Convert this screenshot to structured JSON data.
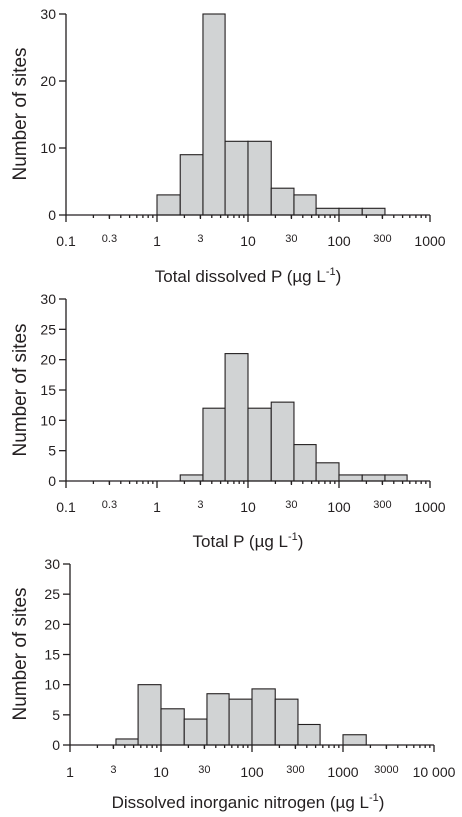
{
  "chart_data": [
    {
      "type": "bar",
      "subtype": "histogram",
      "x_scale": "log",
      "xlim": [
        0.1,
        1000
      ],
      "ylim": [
        0,
        30
      ],
      "yticks": [
        "0",
        "10",
        "20",
        "30"
      ],
      "xticks": [
        {
          "value": 0.1,
          "label": "0.1",
          "major": true
        },
        {
          "value": 0.3,
          "label": "0.3",
          "major": false
        },
        {
          "value": 1,
          "label": "1",
          "major": true
        },
        {
          "value": 3,
          "label": "3",
          "major": false
        },
        {
          "value": 10,
          "label": "10",
          "major": true
        },
        {
          "value": 30,
          "label": "30",
          "major": false
        },
        {
          "value": 100,
          "label": "100",
          "major": true
        },
        {
          "value": 300,
          "label": "300",
          "major": false
        },
        {
          "value": 1000,
          "label": "1000",
          "major": true
        }
      ],
      "ylabel": "Number of sites",
      "xlabel": "Total dissolved P  (µg L",
      "xlabel_sup": "-1",
      "xlabel_end": ")",
      "bar_color": "#d1d3d4",
      "bins": [
        {
          "from": 1.0,
          "to": 1.8,
          "count": 3
        },
        {
          "from": 1.8,
          "to": 3.2,
          "count": 9
        },
        {
          "from": 3.2,
          "to": 5.6,
          "count": 30
        },
        {
          "from": 5.6,
          "to": 10,
          "count": 11
        },
        {
          "from": 10,
          "to": 18,
          "count": 11
        },
        {
          "from": 18,
          "to": 32,
          "count": 4
        },
        {
          "from": 32,
          "to": 56,
          "count": 3
        },
        {
          "from": 56,
          "to": 100,
          "count": 1
        },
        {
          "from": 100,
          "to": 180,
          "count": 1
        },
        {
          "from": 180,
          "to": 320,
          "count": 1
        }
      ]
    },
    {
      "type": "bar",
      "subtype": "histogram",
      "x_scale": "log",
      "xlim": [
        0.1,
        1000
      ],
      "ylim": [
        0,
        30
      ],
      "yticks": [
        "0",
        "5",
        "10",
        "15",
        "20",
        "25",
        "30"
      ],
      "xticks": [
        {
          "value": 0.1,
          "label": "0.1",
          "major": true
        },
        {
          "value": 0.3,
          "label": "0.3",
          "major": false
        },
        {
          "value": 1,
          "label": "1",
          "major": true
        },
        {
          "value": 3,
          "label": "3",
          "major": false
        },
        {
          "value": 10,
          "label": "10",
          "major": true
        },
        {
          "value": 30,
          "label": "30",
          "major": false
        },
        {
          "value": 100,
          "label": "100",
          "major": true
        },
        {
          "value": 300,
          "label": "300",
          "major": false
        },
        {
          "value": 1000,
          "label": "1000",
          "major": true
        }
      ],
      "ylabel": "Number of sites",
      "xlabel": "Total P  (µg L",
      "xlabel_sup": "-1",
      "xlabel_end": ")",
      "bar_color": "#d1d3d4",
      "bins": [
        {
          "from": 1.8,
          "to": 3.2,
          "count": 1
        },
        {
          "from": 3.2,
          "to": 5.6,
          "count": 12
        },
        {
          "from": 5.6,
          "to": 10,
          "count": 21
        },
        {
          "from": 10,
          "to": 18,
          "count": 12
        },
        {
          "from": 18,
          "to": 32,
          "count": 13
        },
        {
          "from": 32,
          "to": 56,
          "count": 6
        },
        {
          "from": 56,
          "to": 100,
          "count": 3
        },
        {
          "from": 100,
          "to": 180,
          "count": 1
        },
        {
          "from": 180,
          "to": 320,
          "count": 1
        },
        {
          "from": 320,
          "to": 560,
          "count": 1
        }
      ]
    },
    {
      "type": "bar",
      "subtype": "histogram",
      "x_scale": "log",
      "xlim": [
        1,
        10000
      ],
      "ylim": [
        0,
        30
      ],
      "yticks": [
        "0",
        "5",
        "10",
        "15",
        "20",
        "25",
        "30"
      ],
      "xticks": [
        {
          "value": 1,
          "label": "1",
          "major": true
        },
        {
          "value": 3,
          "label": "3",
          "major": false
        },
        {
          "value": 10,
          "label": "10",
          "major": true
        },
        {
          "value": 30,
          "label": "30",
          "major": false
        },
        {
          "value": 100,
          "label": "100",
          "major": true
        },
        {
          "value": 300,
          "label": "300",
          "major": false
        },
        {
          "value": 1000,
          "label": "1000",
          "major": true
        },
        {
          "value": 3000,
          "label": "3000",
          "major": false
        },
        {
          "value": 10000,
          "label": "10 000",
          "major": true
        }
      ],
      "ylabel": "Number of sites",
      "xlabel": "Dissolved inorganic nitrogen (µg L",
      "xlabel_sup": "-1",
      "xlabel_end": ")",
      "bar_color": "#d1d3d4",
      "bins": [
        {
          "from": 3.2,
          "to": 5.6,
          "count": 1
        },
        {
          "from": 5.6,
          "to": 10,
          "count": 10
        },
        {
          "from": 10,
          "to": 18,
          "count": 6
        },
        {
          "from": 18,
          "to": 32,
          "count": 4.3
        },
        {
          "from": 32,
          "to": 56,
          "count": 8.5
        },
        {
          "from": 56,
          "to": 100,
          "count": 7.6
        },
        {
          "from": 100,
          "to": 180,
          "count": 9.3
        },
        {
          "from": 180,
          "to": 320,
          "count": 7.6
        },
        {
          "from": 320,
          "to": 560,
          "count": 3.4
        },
        {
          "from": 1000,
          "to": 1800,
          "count": 1.7
        }
      ]
    }
  ]
}
